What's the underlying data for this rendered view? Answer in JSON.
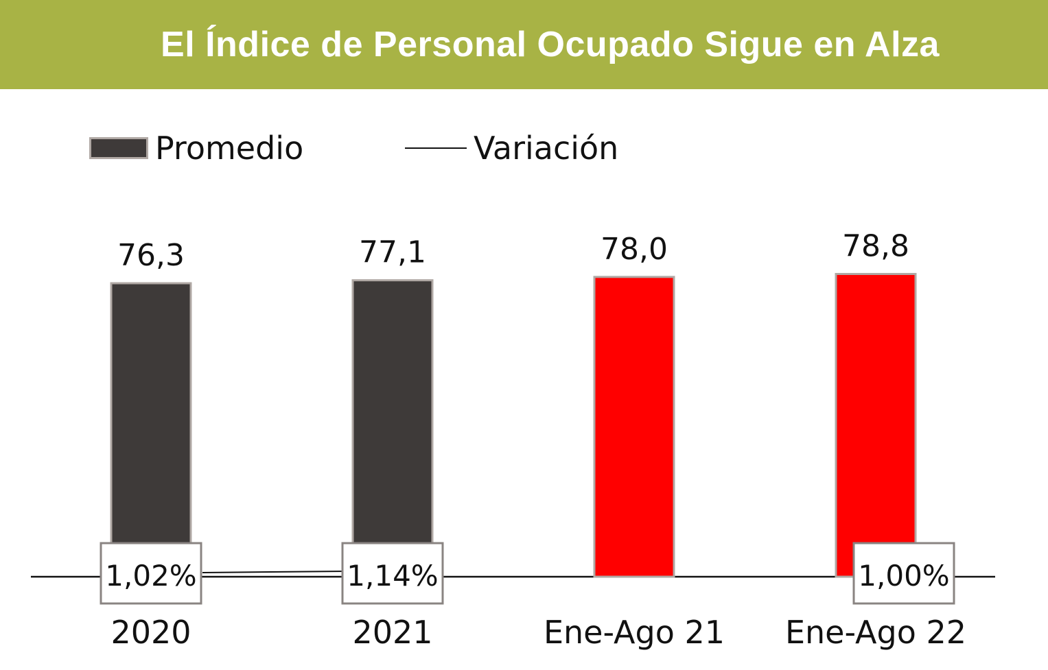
{
  "header": {
    "title": "El Índice de Personal Ocupado Sigue en Alza",
    "background": "#a8b345"
  },
  "chart_data": {
    "type": "bar",
    "title": "El Índice de Personal Ocupado Sigue en Alza",
    "categories": [
      "2020",
      "2021",
      "Ene-Ago 21",
      "Ene-Ago 22"
    ],
    "series": [
      {
        "name": "Promedio",
        "values": [
          76.3,
          77.1,
          78.0,
          78.8
        ],
        "value_labels": [
          "76,3",
          "77,1",
          "78,0",
          "78,8"
        ],
        "colors": [
          "#3e3a39",
          "#3e3a39",
          "#ff0000",
          "#ff0000"
        ]
      },
      {
        "name": "Variación",
        "type": "line",
        "values": [
          1.02,
          1.14,
          null,
          1.0
        ],
        "value_labels": [
          "1,02%",
          "1,14%",
          "",
          "1,00%"
        ],
        "color": "#111111"
      }
    ],
    "legend": {
      "position": "top-left",
      "items": [
        {
          "label": "Promedio",
          "marker": "bar",
          "color": "#3e3a39"
        },
        {
          "label": "Variación",
          "marker": "line",
          "color": "#111111"
        }
      ]
    },
    "grid": false,
    "xlabel": "",
    "ylabel": ""
  }
}
